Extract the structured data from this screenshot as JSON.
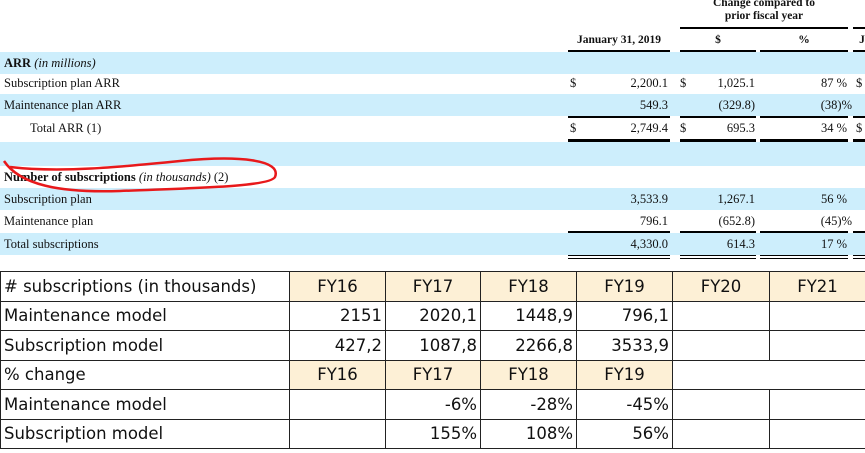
{
  "header": {
    "change_title_1": "Change compared to",
    "change_title_2": "prior fiscal year",
    "col_date": "January 31, 2019",
    "col_dollar": "$",
    "col_pct": "%",
    "col_next": "J"
  },
  "arr": {
    "title": "ARR",
    "title_note": "(in millions)",
    "rows": [
      {
        "label": "Subscription plan ARR",
        "cur": "$",
        "value": "2,200.1",
        "chg_cur": "$",
        "change": "1,025.1",
        "pct": "87 %",
        "next": "$"
      },
      {
        "label": "Maintenance plan ARR",
        "cur": "",
        "value": "549.3",
        "chg_cur": "",
        "change": "(329.8)",
        "pct": "(38)%",
        "next": ""
      },
      {
        "label": "Total ARR (1)",
        "cur": "$",
        "value": "2,749.4",
        "chg_cur": "$",
        "change": "695.3",
        "pct": "34 %",
        "next": "$"
      }
    ]
  },
  "subs": {
    "title": "Number of subscriptions",
    "title_note": "(in thousands)",
    "title_ref": "(2)",
    "rows": [
      {
        "label": "Subscription plan",
        "value": "3,533.9",
        "change": "1,267.1",
        "pct": "56 %"
      },
      {
        "label": "Maintenance plan",
        "value": "796.1",
        "change": "(652.8)",
        "pct": "(45)%"
      },
      {
        "label": "Total subscriptions",
        "value": "4,330.0",
        "change": "614.3",
        "pct": "17 %"
      }
    ]
  },
  "annotation": {
    "color": "#e8191b"
  },
  "sheet": {
    "header1": [
      "# subscriptions (in thousands)",
      "FY16",
      "FY17",
      "FY18",
      "FY19",
      "FY20",
      "FY21"
    ],
    "rows1": [
      [
        "Maintenance model",
        "2151",
        "2020,1",
        "1448,9",
        "796,1",
        "",
        ""
      ],
      [
        "Subscription model",
        "427,2",
        "1087,8",
        "2266,8",
        "3533,9",
        "",
        ""
      ]
    ],
    "header2": [
      "% change",
      "FY16",
      "FY17",
      "FY18",
      "FY19"
    ],
    "rows2": [
      [
        "Maintenance model",
        "",
        "-6%",
        "-28%",
        "-45%",
        "",
        ""
      ],
      [
        "Subscription model",
        "",
        "155%",
        "108%",
        "56%",
        "",
        ""
      ]
    ],
    "header_fill": "#fdf0d6"
  }
}
